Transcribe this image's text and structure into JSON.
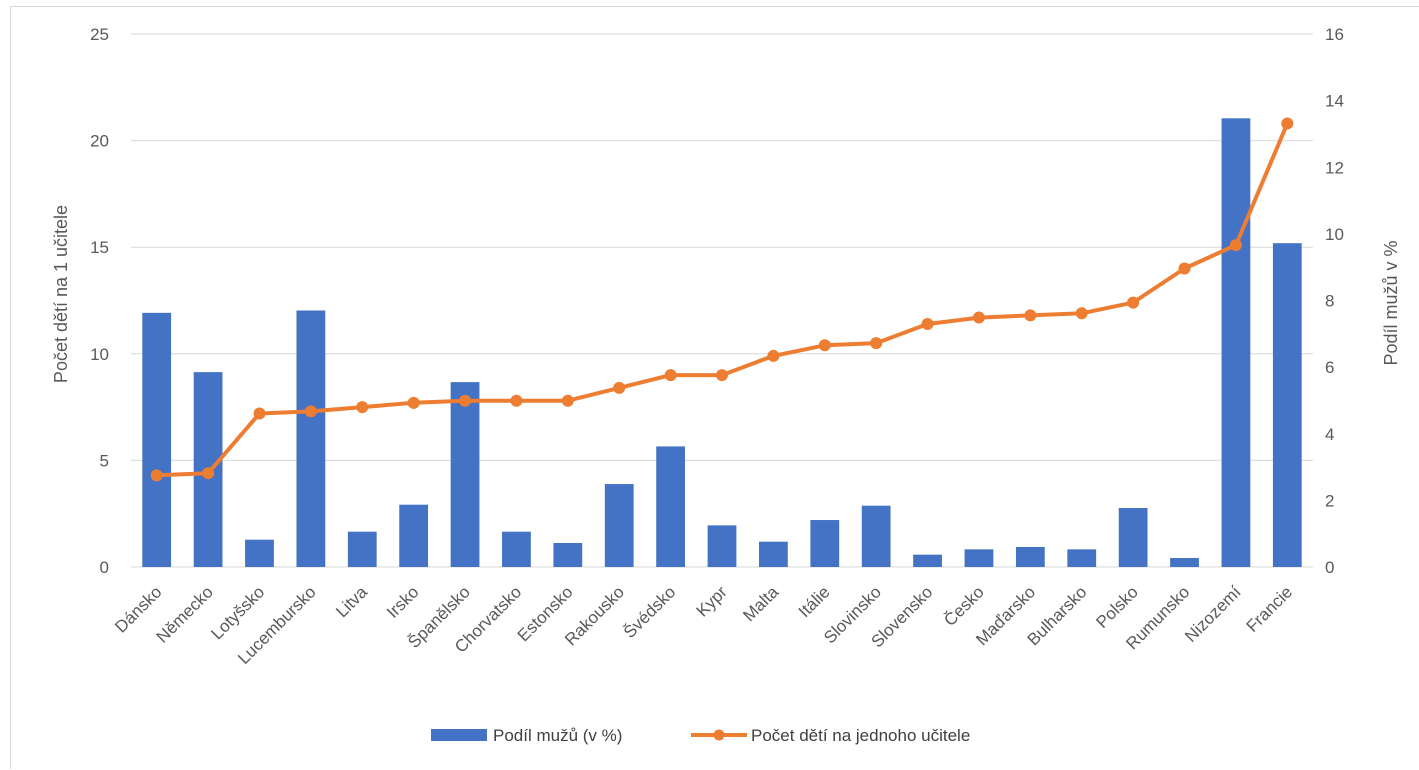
{
  "chart_data": {
    "type": "bar+line",
    "title": "",
    "categories": [
      "Dánsko",
      "Německo",
      "Lotyšsko",
      "Lucembursko",
      "Litva",
      "Irsko",
      "Španělsko",
      "Chorvatsko",
      "Estonsko",
      "Rakousko",
      "Švédsko",
      "Kypr",
      "Malta",
      "Itálie",
      "Slovinsko",
      "Slovensko",
      "Česko",
      "Maďarsko",
      "Bulharsko",
      "Polsko",
      "Rumunsko",
      "Nizozemí",
      "Francie"
    ],
    "series": [
      {
        "name": "Podíl mužů (v %)",
        "type": "bar",
        "axis": "right",
        "color": "#4472c4",
        "values": [
          7.63,
          5.85,
          0.82,
          7.7,
          1.06,
          1.87,
          5.55,
          1.06,
          0.72,
          2.49,
          3.62,
          1.25,
          0.76,
          1.41,
          1.84,
          0.37,
          0.53,
          0.6,
          0.53,
          1.77,
          0.27,
          13.47,
          9.72
        ]
      },
      {
        "name": "Počet dětí na jednoho učitele",
        "type": "line",
        "axis": "left",
        "color": "#ed7d31",
        "values": [
          4.3,
          4.4,
          7.2,
          7.3,
          7.5,
          7.7,
          7.8,
          7.8,
          7.8,
          8.4,
          9.0,
          9.0,
          9.9,
          10.4,
          10.5,
          11.4,
          11.7,
          11.8,
          11.9,
          12.4,
          14.0,
          15.1,
          20.8
        ]
      }
    ],
    "y_left": {
      "label": "Počet dětí na 1 učitele",
      "ylim": [
        0,
        25
      ],
      "ticks": [
        "0",
        "5",
        "10",
        "15",
        "20",
        "25"
      ]
    },
    "y_right": {
      "label": "Podíl mužů v %",
      "ylim": [
        0,
        16
      ],
      "ticks": [
        "0",
        "2",
        "4",
        "6",
        "8",
        "10",
        "12",
        "14",
        "16"
      ]
    },
    "grid": true,
    "legend_position": "bottom"
  }
}
